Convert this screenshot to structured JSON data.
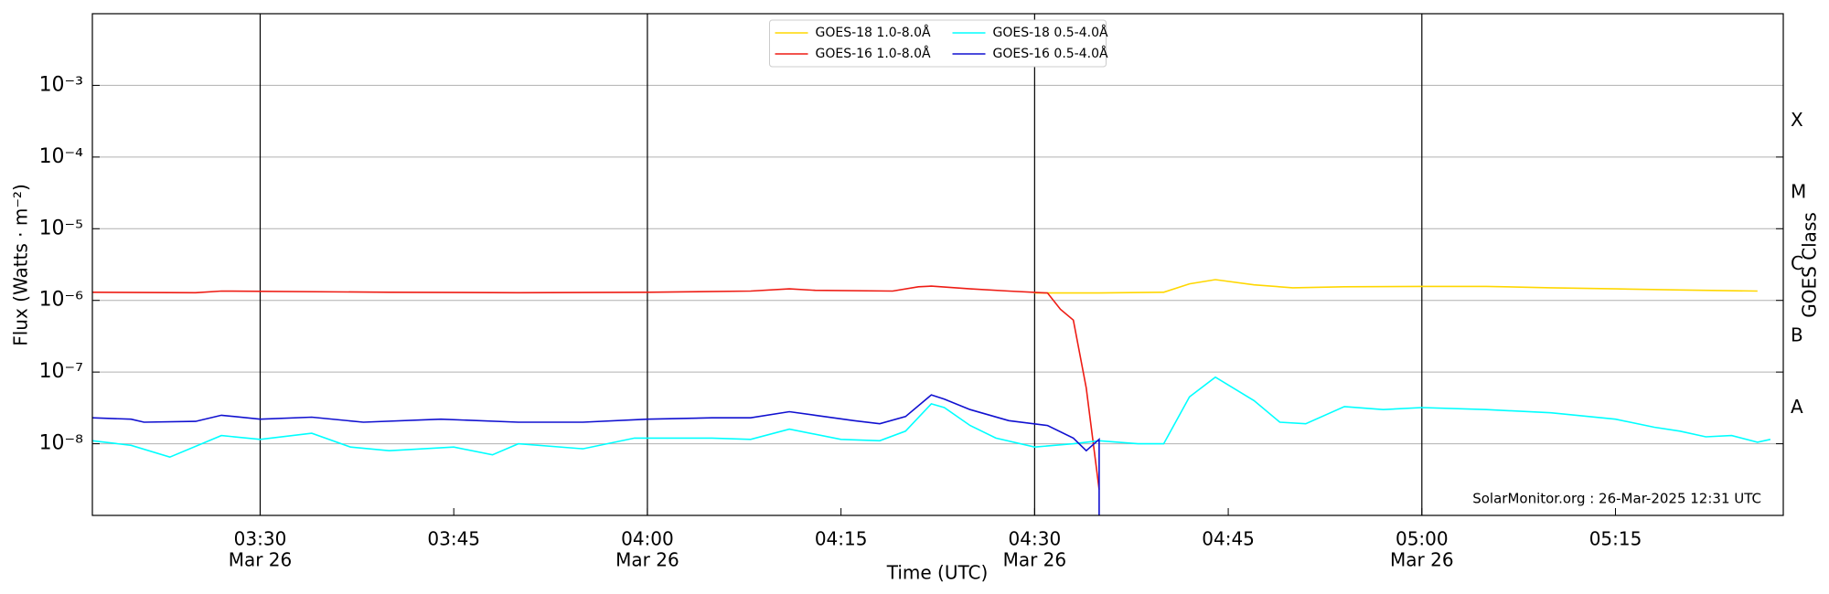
{
  "chart_data": {
    "type": "line",
    "xlabel": "Time (UTC)",
    "ylabel": "Flux (Watts · m⁻²)",
    "y2label": "GOES Class",
    "annotation": "SolarMonitor.org : 26-Mar-2025 12:31 UTC",
    "legend": "upper center",
    "grid": true,
    "yscale": "log",
    "xlim": [
      "03:17",
      "05:28"
    ],
    "ylim": [
      1e-09,
      0.01
    ],
    "xticks": [
      {
        "value": "03:30",
        "label": [
          "03:30",
          "Mar 26"
        ]
      },
      "03:45",
      {
        "value": "04:00",
        "label": [
          "04:00",
          "Mar 26"
        ]
      },
      "04:15",
      {
        "value": "04:30",
        "label": [
          "04:30",
          "Mar 26"
        ]
      },
      "04:45",
      {
        "value": "05:00",
        "label": [
          "05:00",
          "Mar 26"
        ]
      },
      "05:15"
    ],
    "yticks": [
      {
        "value": 1e-08,
        "label": "10⁻⁸"
      },
      {
        "value": 1e-07,
        "label": "10⁻⁷"
      },
      {
        "value": 1e-06,
        "label": "10⁻⁶"
      },
      {
        "value": 1e-05,
        "label": "10⁻⁵"
      },
      {
        "value": 0.0001,
        "label": "10⁻⁴"
      },
      {
        "value": 0.001,
        "label": "10⁻³"
      }
    ],
    "y2ticks": [
      {
        "value": 1e-08,
        "label": "A"
      },
      {
        "value": 1e-07,
        "label": "B"
      },
      {
        "value": 1e-06,
        "label": "C"
      },
      {
        "value": 1e-05,
        "label": "M"
      },
      {
        "value": 0.0001,
        "label": "X"
      }
    ],
    "series": [
      {
        "name": "GOES-18 1.0-8.0Å",
        "color": "#ffd700",
        "x": [
          "04:30",
          "04:35",
          "04:40",
          "04:42",
          "04:44",
          "04:47",
          "04:50",
          "04:54",
          "05:00",
          "05:05",
          "05:10",
          "05:15",
          "05:20",
          "05:26"
        ],
        "values": [
          1.27e-06,
          1.27e-06,
          1.3e-06,
          1.7e-06,
          1.95e-06,
          1.65e-06,
          1.5e-06,
          1.55e-06,
          1.57e-06,
          1.57e-06,
          1.5e-06,
          1.45e-06,
          1.4e-06,
          1.35e-06
        ]
      },
      {
        "name": "GOES-16 1.0-8.0Å",
        "color": "#ee1c14",
        "x": [
          "03:17",
          "03:25",
          "03:27",
          "03:40",
          "03:50",
          "04:00",
          "04:08",
          "04:11",
          "04:13",
          "04:19",
          "04:21",
          "04:22",
          "04:25",
          "04:28",
          "04:31",
          "04:32",
          "04:33",
          "04:34",
          "04:35"
        ],
        "values": [
          1.3e-06,
          1.28e-06,
          1.35e-06,
          1.3e-06,
          1.28e-06,
          1.3e-06,
          1.35e-06,
          1.45e-06,
          1.38e-06,
          1.35e-06,
          1.55e-06,
          1.58e-06,
          1.45e-06,
          1.35e-06,
          1.27e-06,
          7.5e-07,
          5.3e-07,
          6e-08,
          2.3e-09
        ]
      },
      {
        "name": "GOES-18 0.5-4.0Å",
        "color": "#00ffff",
        "x": [
          "03:17",
          "03:20",
          "03:23",
          "03:27",
          "03:30",
          "03:34",
          "03:37",
          "03:40",
          "03:45",
          "03:48",
          "03:50",
          "03:55",
          "03:59",
          "04:05",
          "04:08",
          "04:11",
          "04:15",
          "04:18",
          "04:20",
          "04:22",
          "04:23",
          "04:25",
          "04:27",
          "04:30",
          "04:33",
          "04:35",
          "04:38",
          "04:40",
          "04:42",
          "04:44",
          "04:47",
          "04:49",
          "04:51",
          "04:54",
          "04:57",
          "05:00",
          "05:05",
          "05:10",
          "05:15",
          "05:18",
          "05:20",
          "05:22",
          "05:24",
          "05:26",
          "05:27"
        ],
        "values": [
          1.1e-08,
          9.5e-09,
          6.5e-09,
          1.3e-08,
          1.15e-08,
          1.4e-08,
          9e-09,
          8e-09,
          9e-09,
          7e-09,
          1e-08,
          8.5e-09,
          1.2e-08,
          1.2e-08,
          1.15e-08,
          1.6e-08,
          1.15e-08,
          1.1e-08,
          1.5e-08,
          3.6e-08,
          3.2e-08,
          1.8e-08,
          1.2e-08,
          9e-09,
          1e-08,
          1.1e-08,
          1e-08,
          1e-08,
          4.5e-08,
          8.5e-08,
          4e-08,
          2e-08,
          1.9e-08,
          3.3e-08,
          3e-08,
          3.2e-08,
          3e-08,
          2.7e-08,
          2.2e-08,
          1.7e-08,
          1.5e-08,
          1.25e-08,
          1.3e-08,
          1.05e-08,
          1.15e-08
        ]
      },
      {
        "name": "GOES-16 0.5-4.0Å",
        "color": "#1010d0",
        "x": [
          "03:17",
          "03:20",
          "03:21",
          "03:25",
          "03:27",
          "03:30",
          "03:34",
          "03:38",
          "03:44",
          "03:50",
          "03:55",
          "04:00",
          "04:05",
          "04:08",
          "04:11",
          "04:13",
          "04:16",
          "04:18",
          "04:20",
          "04:22",
          "04:23",
          "04:25",
          "04:28",
          "04:31",
          "04:33",
          "04:34",
          "04:35",
          "04:35"
        ],
        "values": [
          2.3e-08,
          2.2e-08,
          2e-08,
          2.05e-08,
          2.5e-08,
          2.2e-08,
          2.35e-08,
          2e-08,
          2.2e-08,
          2e-08,
          2e-08,
          2.2e-08,
          2.3e-08,
          2.3e-08,
          2.8e-08,
          2.5e-08,
          2.1e-08,
          1.9e-08,
          2.4e-08,
          4.8e-08,
          4.2e-08,
          3e-08,
          2.1e-08,
          1.8e-08,
          1.2e-08,
          8e-09,
          1.15e-08,
          1e-09
        ]
      }
    ]
  }
}
